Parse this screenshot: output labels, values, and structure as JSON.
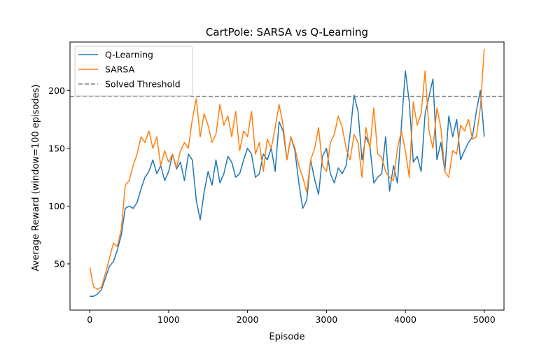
{
  "chart_data": {
    "type": "line",
    "title": "CartPole: SARSA vs Q-Learning",
    "xlabel": "Episode",
    "ylabel": "Average Reward (window=100 episodes)",
    "xlim": [
      -250,
      5250
    ],
    "ylim": [
      10,
      242
    ],
    "xticks": [
      0,
      1000,
      2000,
      3000,
      4000,
      5000
    ],
    "yticks": [
      50,
      100,
      150,
      200
    ],
    "grid": false,
    "legend_position": "upper-left",
    "threshold": {
      "name": "Solved Threshold",
      "value": 195,
      "color": "#7f7f7f",
      "style": "dashed"
    },
    "series": [
      {
        "name": "Q-Learning",
        "color": "#1f77b4",
        "x": [
          0,
          50,
          100,
          150,
          200,
          250,
          300,
          350,
          400,
          450,
          500,
          550,
          600,
          650,
          700,
          750,
          800,
          850,
          900,
          950,
          1000,
          1050,
          1100,
          1150,
          1200,
          1250,
          1300,
          1350,
          1400,
          1450,
          1500,
          1550,
          1600,
          1650,
          1700,
          1750,
          1800,
          1850,
          1900,
          1950,
          2000,
          2050,
          2100,
          2150,
          2200,
          2250,
          2300,
          2350,
          2400,
          2450,
          2500,
          2550,
          2600,
          2650,
          2700,
          2750,
          2800,
          2850,
          2900,
          2950,
          3000,
          3050,
          3100,
          3150,
          3200,
          3250,
          3300,
          3350,
          3400,
          3450,
          3500,
          3550,
          3600,
          3650,
          3700,
          3750,
          3800,
          3850,
          3900,
          3950,
          4000,
          4050,
          4100,
          4150,
          4200,
          4250,
          4300,
          4350,
          4400,
          4450,
          4500,
          4550,
          4600,
          4650,
          4700,
          4750,
          4800,
          4850,
          4900,
          4950,
          5000
        ],
        "y": [
          22,
          22,
          24,
          28,
          38,
          48,
          52,
          62,
          75,
          98,
          100,
          98,
          103,
          115,
          125,
          130,
          140,
          128,
          135,
          122,
          130,
          145,
          132,
          138,
          122,
          145,
          140,
          105,
          88,
          112,
          130,
          118,
          140,
          120,
          128,
          143,
          138,
          125,
          128,
          140,
          150,
          145,
          125,
          128,
          145,
          140,
          150,
          130,
          173,
          165,
          140,
          160,
          148,
          120,
          98,
          105,
          140,
          123,
          110,
          143,
          150,
          128,
          120,
          133,
          128,
          135,
          163,
          196,
          182,
          140,
          160,
          152,
          120,
          125,
          128,
          160,
          113,
          135,
          120,
          170,
          217,
          190,
          138,
          143,
          130,
          180,
          195,
          210,
          140,
          155,
          130,
          178,
          160,
          175,
          140,
          148,
          155,
          160,
          182,
          200,
          160
        ]
      },
      {
        "name": "SARSA",
        "color": "#ff7f0e",
        "x": [
          0,
          50,
          100,
          150,
          200,
          250,
          300,
          350,
          400,
          450,
          500,
          550,
          600,
          650,
          700,
          750,
          800,
          850,
          900,
          950,
          1000,
          1050,
          1100,
          1150,
          1200,
          1250,
          1300,
          1350,
          1400,
          1450,
          1500,
          1550,
          1600,
          1650,
          1700,
          1750,
          1800,
          1850,
          1900,
          1950,
          2000,
          2050,
          2100,
          2150,
          2200,
          2250,
          2300,
          2350,
          2400,
          2450,
          2500,
          2550,
          2600,
          2650,
          2700,
          2750,
          2800,
          2850,
          2900,
          2950,
          3000,
          3050,
          3100,
          3150,
          3200,
          3250,
          3300,
          3350,
          3400,
          3450,
          3500,
          3550,
          3600,
          3650,
          3700,
          3750,
          3800,
          3850,
          3900,
          3950,
          4000,
          4050,
          4100,
          4150,
          4200,
          4250,
          4300,
          4350,
          4400,
          4450,
          4500,
          4550,
          4600,
          4650,
          4700,
          4750,
          4800,
          4850,
          4900,
          4950,
          5000
        ],
        "y": [
          47,
          30,
          28,
          30,
          42,
          55,
          68,
          65,
          80,
          118,
          122,
          135,
          145,
          160,
          155,
          165,
          150,
          160,
          135,
          148,
          138,
          145,
          133,
          148,
          155,
          150,
          175,
          193,
          160,
          180,
          170,
          155,
          162,
          188,
          170,
          178,
          160,
          182,
          148,
          165,
          160,
          182,
          145,
          155,
          130,
          158,
          150,
          168,
          188,
          170,
          140,
          160,
          150,
          135,
          125,
          112,
          140,
          150,
          168,
          135,
          130,
          155,
          162,
          178,
          168,
          150,
          140,
          162,
          155,
          125,
          168,
          150,
          185,
          145,
          142,
          130,
          125,
          122,
          150,
          165,
          148,
          125,
          190,
          170,
          180,
          217,
          165,
          150,
          185,
          168,
          130,
          125,
          148,
          145,
          170,
          165,
          175,
          158,
          160,
          185,
          236
        ]
      }
    ]
  }
}
